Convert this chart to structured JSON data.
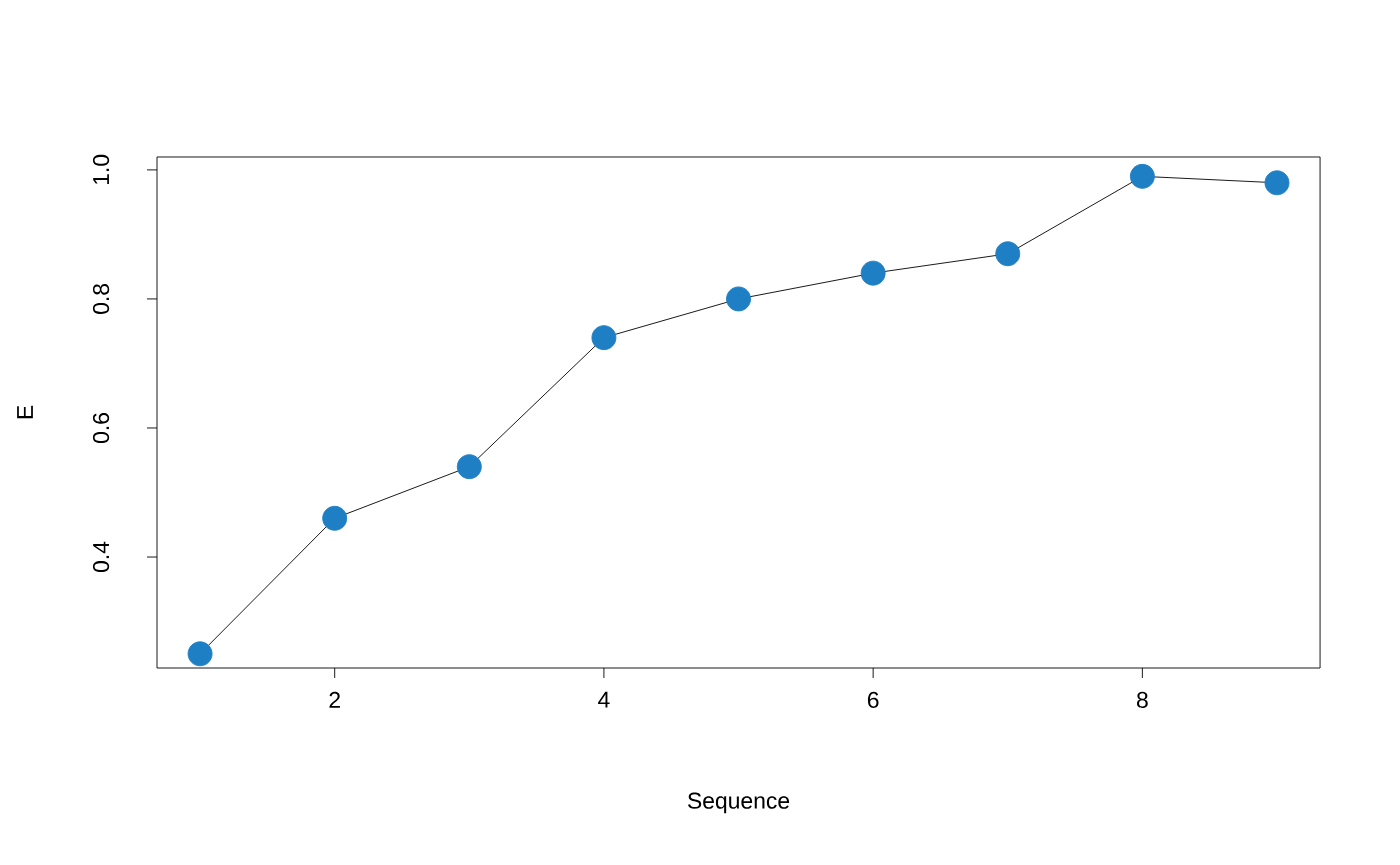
{
  "chart_data": {
    "type": "line",
    "xlabel": "Sequence",
    "ylabel": "E",
    "x": [
      1,
      2,
      3,
      4,
      5,
      6,
      7,
      8,
      9
    ],
    "series": [
      {
        "color": "#1f7fc4",
        "values": [
          0.25,
          0.46,
          0.54,
          0.74,
          0.8,
          0.84,
          0.87,
          0.99,
          0.98
        ]
      }
    ],
    "xlim": [
      0.68,
      9.32
    ],
    "ylim": [
      0.228,
      1.02
    ],
    "xticks": [
      2,
      4,
      6,
      8
    ],
    "yticks": [
      0.4,
      0.6,
      0.8,
      {
        "value": 1.0,
        "label": "1.0"
      }
    ],
    "marker": "circle",
    "line_style": "solid",
    "grid": false
  }
}
